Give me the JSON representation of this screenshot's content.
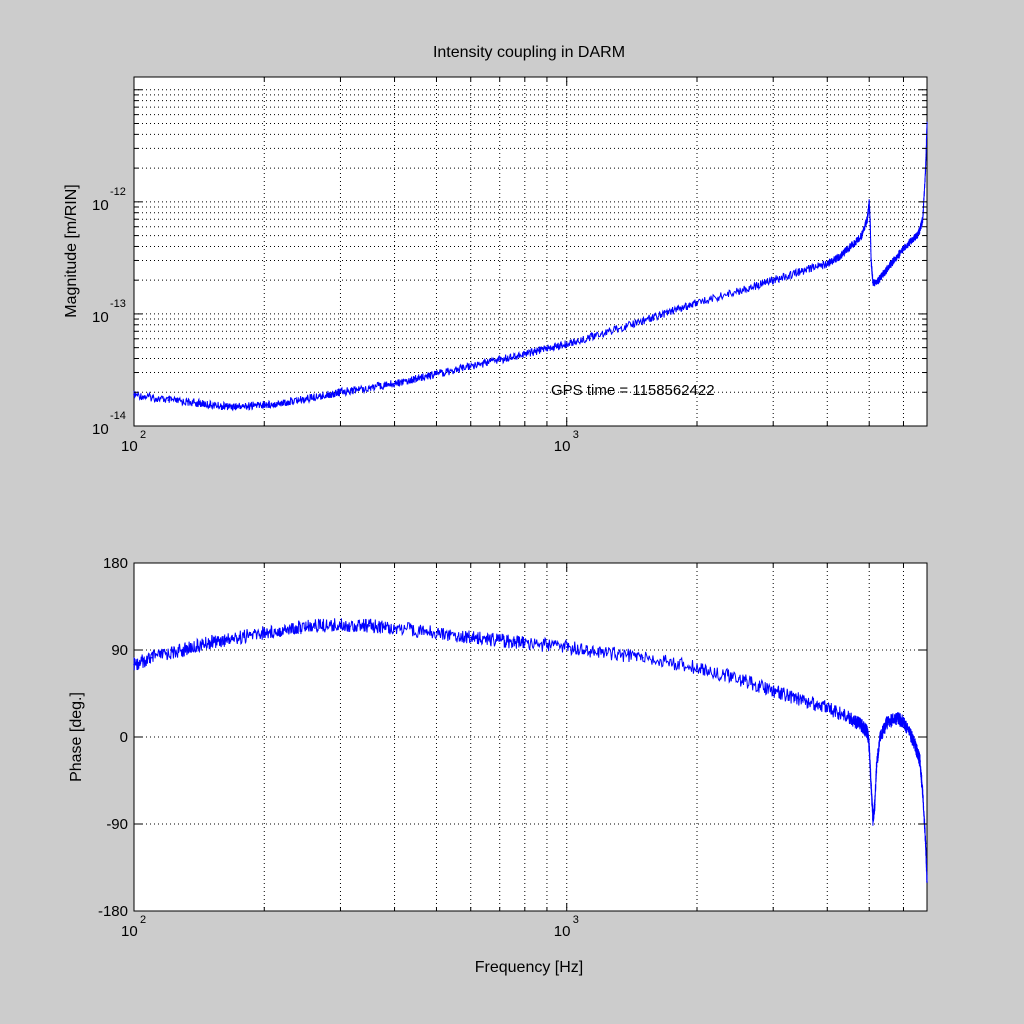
{
  "figure": {
    "title": "Intensity coupling in DARM",
    "background": "#cccccc",
    "axes_bg": "#ffffff",
    "line_color": "#0000ff"
  },
  "chart_data": [
    {
      "type": "line",
      "title": "Intensity coupling in DARM",
      "xlabel": "",
      "ylabel": "Magnitude [m/RIN]",
      "xscale": "log",
      "yscale": "log",
      "xlim": [
        100,
        6800
      ],
      "ylim": [
        1e-14,
        1.3e-11
      ],
      "grid": true,
      "xticks": [
        {
          "value": 100,
          "base": "10",
          "exp": "2"
        },
        {
          "value": 1000,
          "base": "10",
          "exp": "3"
        }
      ],
      "yticks": [
        {
          "value": 1e-14,
          "base": "10",
          "exp": "-14"
        },
        {
          "value": 1e-13,
          "base": "10",
          "exp": "-13"
        },
        {
          "value": 1e-12,
          "base": "10",
          "exp": "-12"
        }
      ],
      "annotation": {
        "text": "GPS time = 1158562422",
        "x": 1000,
        "y": 1.4e-14
      },
      "series": [
        {
          "x": [
            100,
            120,
            140,
            160,
            180,
            200,
            220,
            250,
            280,
            300,
            350,
            400,
            450,
            500,
            600,
            700,
            800,
            900,
            1000,
            1200,
            1500,
            1800,
            2000,
            2500,
            3000,
            3500,
            4000,
            4300,
            4500,
            4800,
            4950,
            5000,
            5030,
            5050,
            5100,
            5200,
            5400,
            5700,
            6000,
            6300,
            6500,
            6650,
            6750,
            6800
          ],
          "y": [
            1.9e-14,
            1.7e-14,
            1.6e-14,
            1.5e-14,
            1.5e-14,
            1.55e-14,
            1.6e-14,
            1.75e-14,
            1.9e-14,
            2e-14,
            2.2e-14,
            2.4e-14,
            2.65e-14,
            2.9e-14,
            3.4e-14,
            3.9e-14,
            4.4e-14,
            4.9e-14,
            5.4e-14,
            6.6e-14,
            8.7e-14,
            1.1e-13,
            1.25e-13,
            1.6e-13,
            2e-13,
            2.4e-13,
            2.8e-13,
            3.3e-13,
            3.9e-13,
            5e-13,
            7e-13,
            1e-12,
            6e-13,
            3e-13,
            1.9e-13,
            1.9e-13,
            2.3e-13,
            3e-13,
            3.8e-13,
            4.6e-13,
            5.2e-13,
            7e-13,
            2e-12,
            5e-12
          ]
        }
      ]
    },
    {
      "type": "line",
      "xlabel": "Frequency [Hz]",
      "ylabel": "Phase [deg.]",
      "xscale": "log",
      "yscale": "linear",
      "xlim": [
        100,
        6800
      ],
      "ylim": [
        -180,
        180
      ],
      "grid": true,
      "xticks": [
        {
          "value": 100,
          "base": "10",
          "exp": "2"
        },
        {
          "value": 1000,
          "base": "10",
          "exp": "3"
        }
      ],
      "yticks": [
        -180,
        -90,
        0,
        90,
        180
      ],
      "series": [
        {
          "x": [
            100,
            110,
            130,
            150,
            170,
            200,
            230,
            260,
            300,
            350,
            400,
            500,
            600,
            700,
            800,
            1000,
            1200,
            1500,
            2000,
            2500,
            3000,
            3500,
            4000,
            4500,
            4800,
            4950,
            5000,
            5050,
            5100,
            5150,
            5200,
            5300,
            5500,
            5800,
            6000,
            6200,
            6400,
            6550,
            6650,
            6750,
            6800
          ],
          "y": [
            75,
            82,
            90,
            98,
            102,
            108,
            112,
            115,
            116,
            115,
            113,
            108,
            103,
            100,
            97,
            93,
            88,
            82,
            72,
            60,
            48,
            38,
            30,
            20,
            12,
            5,
            -10,
            -50,
            -85,
            -70,
            -30,
            0,
            15,
            20,
            15,
            5,
            -10,
            -25,
            -60,
            -110,
            -150
          ]
        }
      ]
    }
  ]
}
